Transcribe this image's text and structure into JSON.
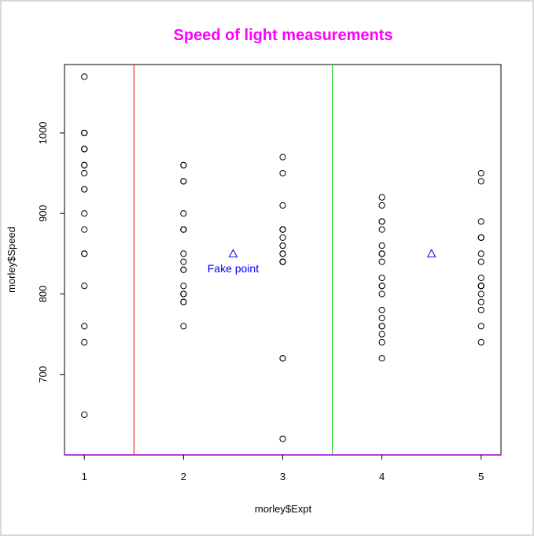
{
  "chart_data": {
    "type": "scatter",
    "title": "Speed of light measurements",
    "xlabel": "morley$Expt",
    "ylabel": "morley$Speed",
    "xlim": [
      0.8,
      5.2
    ],
    "ylim": [
      600,
      1085
    ],
    "x_ticks": [
      "1",
      "2",
      "3",
      "4",
      "5"
    ],
    "y_ticks": [
      "700",
      "800",
      "900",
      "1000"
    ],
    "grid": false,
    "series": [
      {
        "x": [
          1,
          1,
          1,
          1,
          1,
          1,
          1,
          1,
          1,
          1,
          1,
          1,
          1,
          1,
          1,
          1,
          1,
          1,
          1,
          1,
          2,
          2,
          2,
          2,
          2,
          2,
          2,
          2,
          2,
          2,
          2,
          2,
          2,
          2,
          2,
          2,
          2,
          2,
          2,
          2,
          3,
          3,
          3,
          3,
          3,
          3,
          3,
          3,
          3,
          3,
          3,
          3,
          3,
          3,
          3,
          3,
          3,
          3,
          3,
          3,
          4,
          4,
          4,
          4,
          4,
          4,
          4,
          4,
          4,
          4,
          4,
          4,
          4,
          4,
          4,
          4,
          4,
          4,
          4,
          4,
          5,
          5,
          5,
          5,
          5,
          5,
          5,
          5,
          5,
          5,
          5,
          5,
          5,
          5,
          5,
          5,
          5,
          5,
          5,
          5
        ],
        "y": [
          850,
          740,
          900,
          1070,
          930,
          850,
          950,
          980,
          980,
          880,
          1000,
          980,
          930,
          650,
          760,
          810,
          1000,
          1000,
          960,
          960,
          960,
          940,
          960,
          940,
          880,
          800,
          850,
          880,
          900,
          840,
          830,
          790,
          810,
          880,
          880,
          830,
          800,
          790,
          760,
          800,
          880,
          880,
          880,
          860,
          720,
          720,
          620,
          860,
          970,
          950,
          880,
          910,
          850,
          870,
          840,
          840,
          850,
          840,
          840,
          840,
          890,
          810,
          810,
          820,
          800,
          770,
          760,
          740,
          750,
          760,
          910,
          920,
          890,
          860,
          880,
          720,
          840,
          850,
          850,
          780,
          890,
          840,
          780,
          810,
          760,
          810,
          790,
          810,
          820,
          850,
          870,
          870,
          810,
          740,
          810,
          940,
          950,
          800,
          810,
          870
        ],
        "marker": "open-circle",
        "color": "#000000"
      },
      {
        "x": [
          2.5,
          4.5
        ],
        "y": [
          850,
          850
        ],
        "marker": "open-triangle",
        "color": "#0000ff"
      }
    ],
    "vlines": [
      {
        "x": 1.5,
        "color": "#ff0000"
      },
      {
        "x": 3.5,
        "color": "#00cc00"
      }
    ],
    "hlines": [
      {
        "y": 600,
        "color": "#9900cc"
      }
    ],
    "annotations": [
      {
        "x": 2.5,
        "y": 830,
        "text": "Fake point",
        "color": "#0000ff"
      }
    ],
    "colors": {
      "title": "#ff00ff",
      "points": "#000000",
      "fake": "#0000ff",
      "line_red": "#ff0000",
      "line_green": "#00cc00",
      "baseline": "#9900cc"
    }
  }
}
